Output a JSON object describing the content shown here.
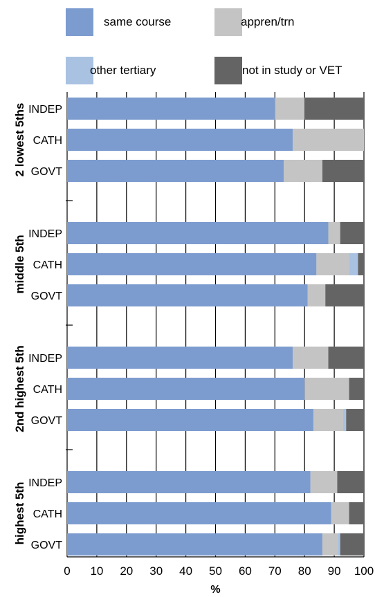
{
  "chart_data": {
    "type": "bar",
    "orientation": "horizontal",
    "stacked": true,
    "xlabel": "%",
    "xlim": [
      0,
      100
    ],
    "xticks": [
      0,
      10,
      20,
      30,
      40,
      50,
      60,
      70,
      80,
      90,
      100
    ],
    "grid": "vertical",
    "legend_position": "top",
    "series_colors": [
      "#7c9ccf",
      "#c4c4c4",
      "#a9c2e2",
      "#646464"
    ],
    "legend": [
      {
        "name": "same course",
        "color": "#7c9ccf"
      },
      {
        "name": "appren/trn",
        "color": "#c4c4c4"
      },
      {
        "name": "other tertiary",
        "color": "#a9c2e2"
      },
      {
        "name": "not in study or VET",
        "color": "#646464"
      }
    ],
    "groups": [
      {
        "label": "2 lowest 5ths",
        "bars": [
          {
            "label": "INDEP",
            "values": [
              70,
              10,
              0,
              20
            ]
          },
          {
            "label": "CATH",
            "values": [
              76,
              24,
              0,
              0
            ]
          },
          {
            "label": "GOVT",
            "values": [
              73,
              13,
              0,
              14
            ]
          }
        ]
      },
      {
        "label": "middle 5th",
        "bars": [
          {
            "label": "INDEP",
            "values": [
              88,
              4,
              0,
              8
            ]
          },
          {
            "label": "CATH",
            "values": [
              84,
              11,
              3,
              2
            ]
          },
          {
            "label": "GOVT",
            "values": [
              81,
              6,
              0,
              13
            ]
          }
        ]
      },
      {
        "label": "2nd highest 5th",
        "bars": [
          {
            "label": "INDEP",
            "values": [
              76,
              12,
              0,
              12
            ]
          },
          {
            "label": "CATH",
            "values": [
              80,
              15,
              0,
              5
            ]
          },
          {
            "label": "GOVT",
            "values": [
              83,
              10,
              1,
              6
            ]
          }
        ]
      },
      {
        "label": "highest 5th",
        "bars": [
          {
            "label": "INDEP",
            "values": [
              82,
              9,
              0,
              9
            ]
          },
          {
            "label": "CATH",
            "values": [
              89,
              6,
              0,
              5
            ]
          },
          {
            "label": "GOVT",
            "values": [
              86,
              5,
              1,
              8
            ]
          }
        ]
      }
    ]
  }
}
